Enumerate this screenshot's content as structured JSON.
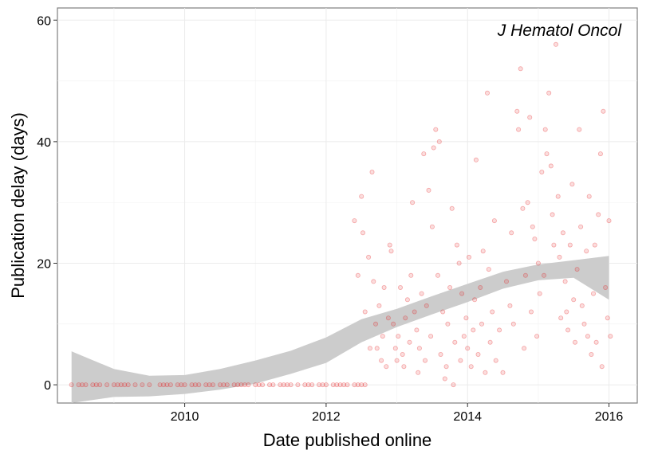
{
  "chart_data": {
    "type": "scatter",
    "title": "",
    "annotation": "J Hematol Oncol",
    "xlabel": "Date published online",
    "ylabel": "Publication delay (days)",
    "xlim": [
      2008.2,
      2016.4
    ],
    "ylim": [
      -3,
      62
    ],
    "x_ticks": [
      2010,
      2012,
      2014,
      2016
    ],
    "x_tick_labels": [
      "2010",
      "2012",
      "2014",
      "2016"
    ],
    "y_ticks": [
      0,
      20,
      40,
      60
    ],
    "y_tick_labels": [
      "0",
      "20",
      "40",
      "60"
    ],
    "grid": true,
    "legend": "none",
    "point_color": "#e41a1c",
    "point_fill_opacity": 0.15,
    "band_color": "#cccccc",
    "smooth_band": {
      "x": [
        2008.4,
        2009.0,
        2009.5,
        2010.0,
        2010.5,
        2011.0,
        2011.5,
        2012.0,
        2012.5,
        2013.0,
        2013.5,
        2014.0,
        2014.5,
        2015.0,
        2015.5,
        2016.0
      ],
      "upper": [
        5.5,
        2.6,
        1.5,
        1.6,
        2.6,
        4.0,
        5.6,
        7.8,
        10.8,
        12.5,
        14.6,
        16.6,
        18.6,
        19.8,
        20.5,
        21.2
      ],
      "lower": [
        -3.0,
        -2.0,
        -1.9,
        -1.5,
        -0.8,
        0.2,
        1.8,
        3.6,
        7.0,
        9.5,
        11.6,
        13.6,
        15.8,
        17.2,
        17.6,
        14.0
      ]
    },
    "series": [
      {
        "points": [
          [
            2008.4,
            0
          ],
          [
            2008.5,
            0
          ],
          [
            2008.55,
            0
          ],
          [
            2008.6,
            0
          ],
          [
            2008.7,
            0
          ],
          [
            2008.75,
            0
          ],
          [
            2008.8,
            0
          ],
          [
            2008.9,
            0
          ],
          [
            2009.0,
            0
          ],
          [
            2009.05,
            0
          ],
          [
            2009.1,
            0
          ],
          [
            2009.15,
            0
          ],
          [
            2009.2,
            0
          ],
          [
            2009.3,
            0
          ],
          [
            2009.4,
            0
          ],
          [
            2009.5,
            0
          ],
          [
            2009.65,
            0
          ],
          [
            2009.7,
            0
          ],
          [
            2009.75,
            0
          ],
          [
            2009.8,
            0
          ],
          [
            2009.9,
            0
          ],
          [
            2009.95,
            0
          ],
          [
            2010.0,
            0
          ],
          [
            2010.1,
            0
          ],
          [
            2010.15,
            0
          ],
          [
            2010.2,
            0
          ],
          [
            2010.3,
            0
          ],
          [
            2010.35,
            0
          ],
          [
            2010.4,
            0
          ],
          [
            2010.5,
            0
          ],
          [
            2010.55,
            0
          ],
          [
            2010.6,
            0
          ],
          [
            2010.7,
            0
          ],
          [
            2010.75,
            0
          ],
          [
            2010.8,
            0
          ],
          [
            2010.85,
            0
          ],
          [
            2010.9,
            0
          ],
          [
            2011.0,
            0
          ],
          [
            2011.05,
            0
          ],
          [
            2011.1,
            0
          ],
          [
            2011.2,
            0
          ],
          [
            2011.25,
            0
          ],
          [
            2011.35,
            0
          ],
          [
            2011.4,
            0
          ],
          [
            2011.45,
            0
          ],
          [
            2011.5,
            0
          ],
          [
            2011.6,
            0
          ],
          [
            2011.7,
            0
          ],
          [
            2011.75,
            0
          ],
          [
            2011.8,
            0
          ],
          [
            2011.9,
            0
          ],
          [
            2011.95,
            0
          ],
          [
            2012.0,
            0
          ],
          [
            2012.1,
            0
          ],
          [
            2012.15,
            0
          ],
          [
            2012.2,
            0
          ],
          [
            2012.25,
            0
          ],
          [
            2012.3,
            0
          ],
          [
            2012.4,
            0
          ],
          [
            2012.45,
            0
          ],
          [
            2012.5,
            0
          ],
          [
            2012.55,
            0
          ],
          [
            2012.4,
            27
          ],
          [
            2012.45,
            18
          ],
          [
            2012.5,
            31
          ],
          [
            2012.52,
            25
          ],
          [
            2012.55,
            12
          ],
          [
            2012.6,
            21
          ],
          [
            2012.62,
            6
          ],
          [
            2012.65,
            35
          ],
          [
            2012.67,
            17
          ],
          [
            2012.7,
            10
          ],
          [
            2012.72,
            6
          ],
          [
            2012.75,
            13
          ],
          [
            2012.78,
            4
          ],
          [
            2012.8,
            8
          ],
          [
            2012.82,
            16
          ],
          [
            2012.85,
            3
          ],
          [
            2012.88,
            11
          ],
          [
            2012.9,
            23
          ],
          [
            2012.92,
            22
          ],
          [
            2012.95,
            10
          ],
          [
            2012.98,
            6
          ],
          [
            2013.0,
            4
          ],
          [
            2013.02,
            8
          ],
          [
            2013.05,
            16
          ],
          [
            2013.08,
            5
          ],
          [
            2013.1,
            3
          ],
          [
            2013.12,
            11
          ],
          [
            2013.15,
            14
          ],
          [
            2013.18,
            7
          ],
          [
            2013.2,
            18
          ],
          [
            2013.22,
            30
          ],
          [
            2013.25,
            12
          ],
          [
            2013.28,
            9
          ],
          [
            2013.3,
            2
          ],
          [
            2013.32,
            6
          ],
          [
            2013.35,
            15
          ],
          [
            2013.38,
            38
          ],
          [
            2013.4,
            4
          ],
          [
            2013.42,
            13
          ],
          [
            2013.45,
            32
          ],
          [
            2013.48,
            8
          ],
          [
            2013.5,
            26
          ],
          [
            2013.52,
            39
          ],
          [
            2013.55,
            42
          ],
          [
            2013.58,
            18
          ],
          [
            2013.6,
            40
          ],
          [
            2013.62,
            5
          ],
          [
            2013.65,
            12
          ],
          [
            2013.68,
            1
          ],
          [
            2013.7,
            3
          ],
          [
            2013.72,
            10
          ],
          [
            2013.75,
            16
          ],
          [
            2013.78,
            29
          ],
          [
            2013.8,
            0
          ],
          [
            2013.82,
            7
          ],
          [
            2013.85,
            23
          ],
          [
            2013.88,
            20
          ],
          [
            2013.9,
            4
          ],
          [
            2013.92,
            15
          ],
          [
            2013.95,
            8
          ],
          [
            2013.98,
            11
          ],
          [
            2014.0,
            6
          ],
          [
            2014.02,
            21
          ],
          [
            2014.05,
            3
          ],
          [
            2014.08,
            9
          ],
          [
            2014.1,
            14
          ],
          [
            2014.12,
            37
          ],
          [
            2014.15,
            5
          ],
          [
            2014.18,
            16
          ],
          [
            2014.2,
            10
          ],
          [
            2014.22,
            22
          ],
          [
            2014.25,
            2
          ],
          [
            2014.28,
            48
          ],
          [
            2014.3,
            19
          ],
          [
            2014.32,
            7
          ],
          [
            2014.35,
            12
          ],
          [
            2014.38,
            27
          ],
          [
            2014.4,
            4
          ],
          [
            2014.45,
            9
          ],
          [
            2014.5,
            2
          ],
          [
            2014.55,
            17
          ],
          [
            2014.6,
            13
          ],
          [
            2014.62,
            25
          ],
          [
            2014.65,
            10
          ],
          [
            2014.7,
            45
          ],
          [
            2014.72,
            42
          ],
          [
            2014.75,
            52
          ],
          [
            2014.78,
            29
          ],
          [
            2014.8,
            6
          ],
          [
            2014.82,
            18
          ],
          [
            2014.85,
            30
          ],
          [
            2014.88,
            44
          ],
          [
            2014.9,
            12
          ],
          [
            2014.92,
            26
          ],
          [
            2014.95,
            24
          ],
          [
            2014.98,
            8
          ],
          [
            2015.0,
            20
          ],
          [
            2015.02,
            15
          ],
          [
            2015.05,
            35
          ],
          [
            2015.08,
            18
          ],
          [
            2015.1,
            42
          ],
          [
            2015.12,
            38
          ],
          [
            2015.15,
            48
          ],
          [
            2015.18,
            36
          ],
          [
            2015.2,
            28
          ],
          [
            2015.22,
            23
          ],
          [
            2015.25,
            56
          ],
          [
            2015.28,
            31
          ],
          [
            2015.3,
            21
          ],
          [
            2015.32,
            11
          ],
          [
            2015.35,
            25
          ],
          [
            2015.38,
            17
          ],
          [
            2015.4,
            12
          ],
          [
            2015.42,
            9
          ],
          [
            2015.45,
            23
          ],
          [
            2015.48,
            33
          ],
          [
            2015.5,
            14
          ],
          [
            2015.52,
            7
          ],
          [
            2015.55,
            19
          ],
          [
            2015.58,
            42
          ],
          [
            2015.6,
            26
          ],
          [
            2015.62,
            13
          ],
          [
            2015.65,
            10
          ],
          [
            2015.68,
            22
          ],
          [
            2015.7,
            8
          ],
          [
            2015.72,
            31
          ],
          [
            2015.75,
            5
          ],
          [
            2015.78,
            15
          ],
          [
            2015.8,
            23
          ],
          [
            2015.82,
            7
          ],
          [
            2015.85,
            28
          ],
          [
            2015.88,
            38
          ],
          [
            2015.9,
            3
          ],
          [
            2015.92,
            45
          ],
          [
            2015.95,
            16
          ],
          [
            2015.98,
            11
          ],
          [
            2016.0,
            27
          ],
          [
            2016.02,
            8
          ]
        ]
      }
    ]
  }
}
